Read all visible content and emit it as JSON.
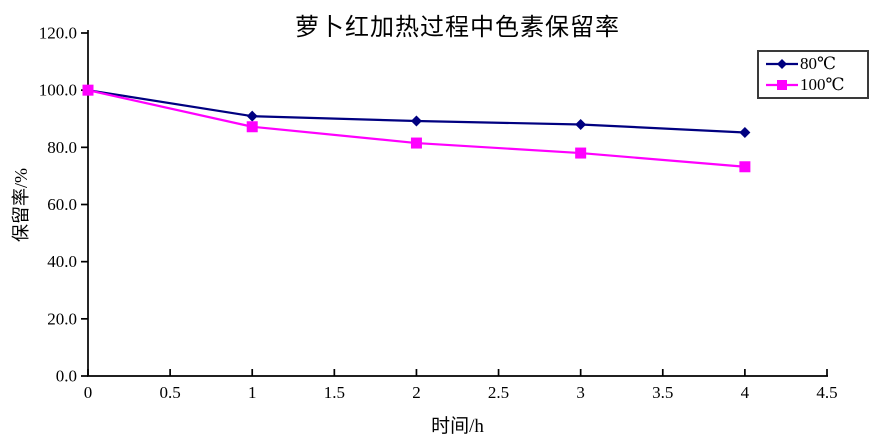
{
  "chart_data": {
    "type": "line",
    "title": "萝卜红加热过程中色素保留率",
    "xlabel": "时间/h",
    "ylabel": "保留率/%",
    "xlim": [
      0,
      4.5
    ],
    "ylim": [
      0,
      120
    ],
    "grid": false,
    "legend_position": "top-right",
    "x": [
      0,
      1,
      2,
      3,
      4
    ],
    "series": [
      {
        "name": "80℃",
        "slug": "80c",
        "color": "#000080",
        "marker": "diamond",
        "values": [
          100.0,
          90.9,
          89.2,
          88.0,
          85.2
        ]
      },
      {
        "name": "100℃",
        "slug": "100c",
        "color": "#ff00ff",
        "marker": "square",
        "values": [
          100.0,
          87.2,
          81.5,
          78.0,
          73.2
        ]
      }
    ],
    "x_tick_values": [
      0,
      0.5,
      1,
      1.5,
      2,
      2.5,
      3,
      3.5,
      4,
      4.5
    ],
    "x_tick_labels": [
      "0",
      "0.5",
      "1",
      "1.5",
      "2",
      "2.5",
      "3",
      "3.5",
      "4",
      "4.5"
    ],
    "y_tick_values": [
      0,
      20,
      40,
      60,
      80,
      100,
      120
    ],
    "y_tick_labels": [
      "0.0",
      "20.0",
      "40.0",
      "60.0",
      "80.0",
      "100.0",
      "120.0"
    ],
    "axis_color": "#000000"
  }
}
